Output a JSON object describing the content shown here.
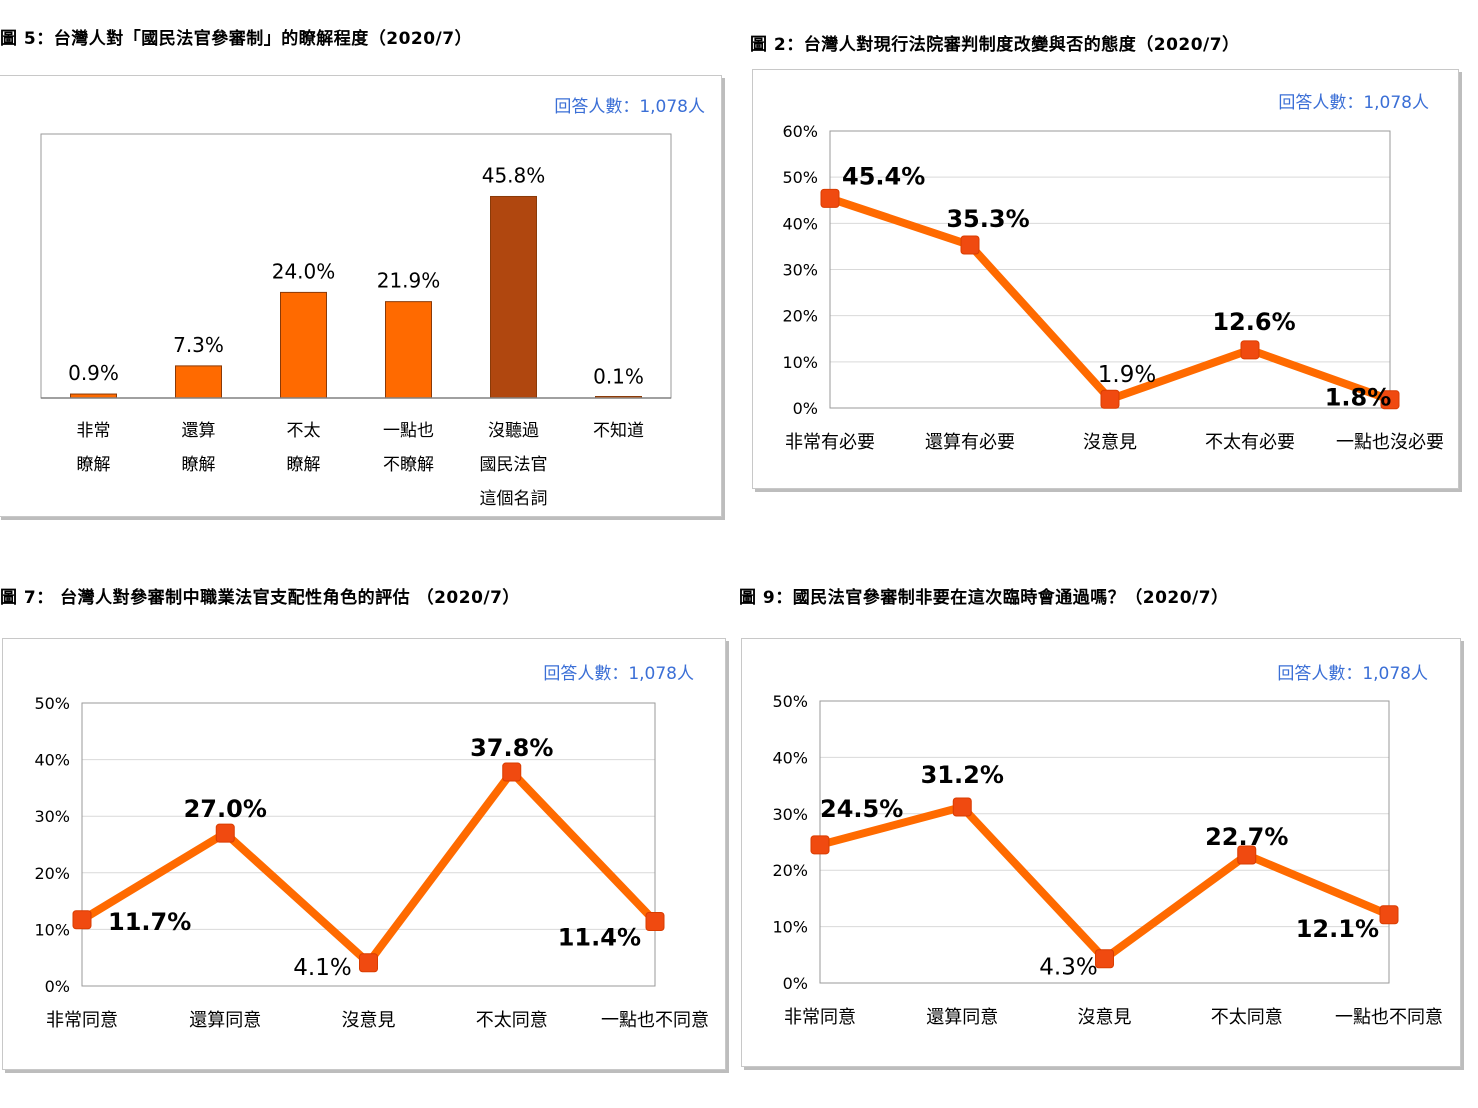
{
  "respondents_label": "回答人數：1,078人",
  "colors": {
    "orange": "#ff6a00",
    "brown": "#b0470f",
    "blue": "#3b6fd6"
  },
  "chart_data": [
    {
      "type": "bar",
      "title": "圖 5：台灣人對「國民法官參審制」的瞭解程度（2020/7）",
      "categories": [
        [
          "非常",
          "瞭解"
        ],
        [
          "還算",
          "瞭解"
        ],
        [
          "不太",
          "瞭解"
        ],
        [
          "一點也",
          "不瞭解"
        ],
        [
          "沒聽過",
          "國民法官",
          "這個名詞"
        ],
        [
          "不知道"
        ]
      ],
      "values": [
        0.9,
        7.3,
        24.0,
        21.9,
        45.8,
        0.1
      ],
      "labels": [
        "0.9%",
        "7.3%",
        "24.0%",
        "21.9%",
        "45.8%",
        "0.1%"
      ],
      "ylim": [
        0,
        60
      ]
    },
    {
      "type": "line",
      "title": "圖 2：台灣人對現行法院審判制度改變與否的態度（2020/7）",
      "categories": [
        "非常有必要",
        "還算有必要",
        "沒意見",
        "不太有必要",
        "一點也沒必要"
      ],
      "values": [
        45.4,
        35.3,
        1.9,
        12.6,
        1.8
      ],
      "labels": [
        "45.4%",
        "35.3%",
        "1.9%",
        "12.6%",
        "1.8%"
      ],
      "yticks": [
        "0%",
        "10%",
        "20%",
        "30%",
        "40%",
        "50%",
        "60%"
      ],
      "ylim": [
        0,
        60
      ]
    },
    {
      "type": "line",
      "title": "圖 7： 台灣人對參審制中職業法官支配性角色的評估 （2020/7）",
      "categories": [
        "非常同意",
        "還算同意",
        "沒意見",
        "不太同意",
        "一點也不同意"
      ],
      "values": [
        11.7,
        27.0,
        4.1,
        37.8,
        11.4
      ],
      "labels": [
        "11.7%",
        "27.0%",
        "4.1%",
        "37.8%",
        "11.4%"
      ],
      "yticks": [
        "0%",
        "10%",
        "20%",
        "30%",
        "40%",
        "50%"
      ],
      "ylim": [
        0,
        50
      ]
    },
    {
      "type": "line",
      "title": "圖 9：國民法官參審制非要在這次臨時會通過嗎？（2020/7）",
      "categories": [
        "非常同意",
        "還算同意",
        "沒意見",
        "不太同意",
        "一點也不同意"
      ],
      "values": [
        24.5,
        31.2,
        4.3,
        22.7,
        12.1
      ],
      "labels": [
        "24.5%",
        "31.2%",
        "4.3%",
        "22.7%",
        "12.1%"
      ],
      "yticks": [
        "0%",
        "10%",
        "20%",
        "30%",
        "40%",
        "50%"
      ],
      "ylim": [
        0,
        50
      ]
    }
  ]
}
